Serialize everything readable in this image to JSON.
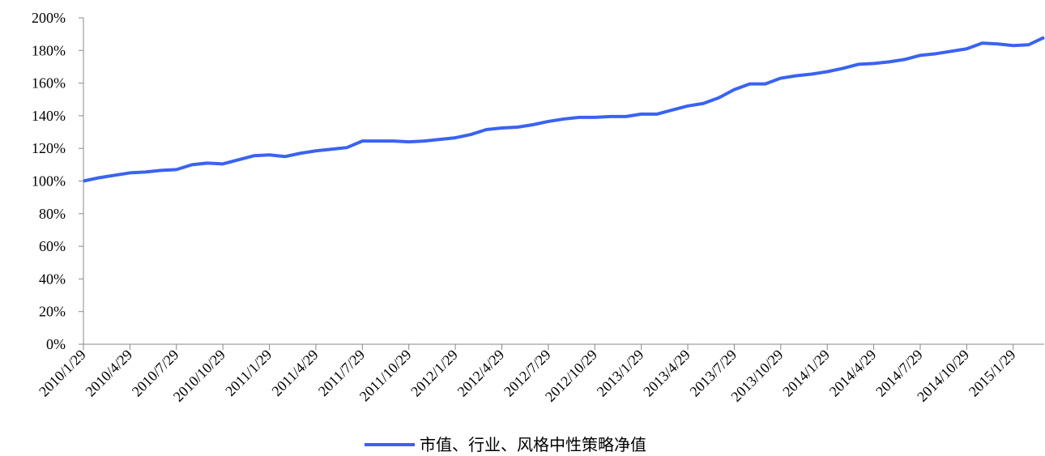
{
  "chart_data": {
    "type": "line",
    "categories": [
      "2010/1/29",
      null,
      null,
      "2010/4/29",
      null,
      null,
      "2010/7/29",
      null,
      null,
      "2010/10/29",
      null,
      null,
      "2011/1/29",
      null,
      null,
      "2011/4/29",
      null,
      null,
      "2011/7/29",
      null,
      null,
      "2011/10/29",
      null,
      null,
      "2012/1/29",
      null,
      null,
      "2012/4/29",
      null,
      null,
      "2012/7/29",
      null,
      null,
      "2012/10/29",
      null,
      null,
      "2013/1/29",
      null,
      null,
      "2013/4/29",
      null,
      null,
      "2013/7/29",
      null,
      null,
      "2013/10/29",
      null,
      null,
      "2014/1/29",
      null,
      null,
      "2014/4/29",
      null,
      null,
      "2014/7/29",
      null,
      null,
      "2014/10/29",
      null,
      null,
      "2015/1/29",
      null,
      null
    ],
    "series": [
      {
        "name": "市值、行业、风格中性策略净值",
        "color": "#3a63f0",
        "values": [
          100,
          102,
          103.5,
          105,
          105.5,
          106.5,
          107,
          110,
          111,
          110.5,
          113,
          115.5,
          116,
          115,
          117,
          118.5,
          119.5,
          120.5,
          124.5,
          124.5,
          124.5,
          124,
          124.5,
          125.5,
          126.5,
          128.5,
          131.5,
          132.5,
          133,
          134.5,
          136.5,
          138,
          139,
          139,
          139.5,
          139.5,
          141,
          141,
          143.5,
          146,
          147.5,
          151,
          156,
          159.5,
          159.5,
          163,
          164.5,
          165.5,
          167,
          169,
          171.5,
          172,
          173,
          174.5,
          177,
          178,
          179.5,
          181,
          184.5,
          184,
          183,
          183.5,
          188
        ]
      }
    ],
    "ylim": [
      0,
      200
    ],
    "yticks": [
      {
        "value": 0,
        "label": "0%"
      },
      {
        "value": 20,
        "label": "20%"
      },
      {
        "value": 40,
        "label": "40%"
      },
      {
        "value": 60,
        "label": "60%"
      },
      {
        "value": 80,
        "label": "80%"
      },
      {
        "value": 100,
        "label": "100%"
      },
      {
        "value": 120,
        "label": "120%"
      },
      {
        "value": 140,
        "label": "140%"
      },
      {
        "value": 160,
        "label": "160%"
      },
      {
        "value": 180,
        "label": "180%"
      },
      {
        "value": 200,
        "label": "200%"
      }
    ],
    "grid": false,
    "legend": "bottom"
  }
}
